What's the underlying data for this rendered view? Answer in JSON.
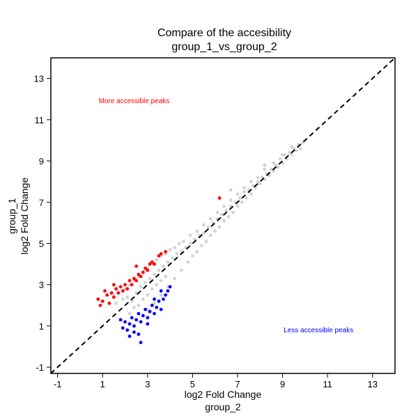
{
  "chart_data": {
    "type": "scatter",
    "title": "Compare of the accesibility",
    "subtitle": "group_1_vs_group_2",
    "xlabel": "log2 Fold Change",
    "xlabel_group": "group_2",
    "ylabel": "log2 Fold Change",
    "ylabel_group": "group_1",
    "xlim": [
      -1.3,
      14
    ],
    "ylim": [
      -1.3,
      14
    ],
    "xticks": [
      "-1",
      "1",
      "3",
      "5",
      "7",
      "9",
      "11",
      "13"
    ],
    "yticks": [
      "-1",
      "1",
      "3",
      "5",
      "7",
      "9",
      "11",
      "13"
    ],
    "grid": false,
    "reference_line": {
      "style": "dashed",
      "color": "#000000",
      "slope": 1,
      "intercept": 0
    },
    "annotations": [
      {
        "text": "More accessible peaks",
        "color": "#ff0000",
        "x": 2.4,
        "y": 11.8
      },
      {
        "text": "Less accessible peaks",
        "color": "#0000ff",
        "x": 10.6,
        "y": 0.7
      }
    ],
    "series": [
      {
        "color": "#d3d3d3",
        "points": [
          [
            1.6,
            2.1
          ],
          [
            1.9,
            2.3
          ],
          [
            2.1,
            2.4
          ],
          [
            2.3,
            2.2
          ],
          [
            2.5,
            2.6
          ],
          [
            2.7,
            2.9
          ],
          [
            2.9,
            3.1
          ],
          [
            3.1,
            3.3
          ],
          [
            3.3,
            3.5
          ],
          [
            3.5,
            3.7
          ],
          [
            3.7,
            3.9
          ],
          [
            3.9,
            4.1
          ],
          [
            4.1,
            4.3
          ],
          [
            4.3,
            4.5
          ],
          [
            4.5,
            4.6
          ],
          [
            4.7,
            4.8
          ],
          [
            4.9,
            5.0
          ],
          [
            5.1,
            5.2
          ],
          [
            5.3,
            5.4
          ],
          [
            5.5,
            5.5
          ],
          [
            5.7,
            5.8
          ],
          [
            5.9,
            6.0
          ],
          [
            6.1,
            6.2
          ],
          [
            6.3,
            6.4
          ],
          [
            6.5,
            6.6
          ],
          [
            6.7,
            6.8
          ],
          [
            6.9,
            7.0
          ],
          [
            7.1,
            7.2
          ],
          [
            7.3,
            7.5
          ],
          [
            7.5,
            7.6
          ],
          [
            7.7,
            7.8
          ],
          [
            7.9,
            8.0
          ],
          [
            8.1,
            8.2
          ],
          [
            8.3,
            8.4
          ],
          [
            8.5,
            8.6
          ],
          [
            8.7,
            8.8
          ],
          [
            8.9,
            9.1
          ],
          [
            9.1,
            9.3
          ],
          [
            9.3,
            9.4
          ],
          [
            9.5,
            9.6
          ],
          [
            9.7,
            9.8
          ],
          [
            9.9,
            9.9
          ],
          [
            2.2,
            1.6
          ],
          [
            2.4,
            1.9
          ],
          [
            2.6,
            2.0
          ],
          [
            2.8,
            2.3
          ],
          [
            3.0,
            2.5
          ],
          [
            3.2,
            2.8
          ],
          [
            3.4,
            3.0
          ],
          [
            3.6,
            3.2
          ],
          [
            3.8,
            3.4
          ],
          [
            2.0,
            2.8
          ],
          [
            2.2,
            3.0
          ],
          [
            2.4,
            3.2
          ],
          [
            2.6,
            3.4
          ],
          [
            2.8,
            3.6
          ],
          [
            3.0,
            3.8
          ],
          [
            3.2,
            4.0
          ],
          [
            3.4,
            4.2
          ],
          [
            3.6,
            4.4
          ],
          [
            3.8,
            4.5
          ],
          [
            4.0,
            4.7
          ],
          [
            4.2,
            4.8
          ],
          [
            4.4,
            5.0
          ],
          [
            4.6,
            5.1
          ],
          [
            2.5,
            1.3
          ],
          [
            2.8,
            1.5
          ],
          [
            3.0,
            1.8
          ],
          [
            3.3,
            2.1
          ],
          [
            3.6,
            2.5
          ],
          [
            3.9,
            2.9
          ],
          [
            4.2,
            3.3
          ],
          [
            4.5,
            3.7
          ],
          [
            4.8,
            4.1
          ],
          [
            5.0,
            4.4
          ],
          [
            5.2,
            4.6
          ],
          [
            5.4,
            4.9
          ],
          [
            5.6,
            5.1
          ],
          [
            5.8,
            5.4
          ],
          [
            6.0,
            5.6
          ],
          [
            6.2,
            5.8
          ],
          [
            6.4,
            6.1
          ],
          [
            6.6,
            6.3
          ],
          [
            6.8,
            6.5
          ],
          [
            7.0,
            6.8
          ],
          [
            7.2,
            7.0
          ],
          [
            7.4,
            7.2
          ],
          [
            7.6,
            7.4
          ],
          [
            7.8,
            7.7
          ],
          [
            8.0,
            7.9
          ],
          [
            8.2,
            8.1
          ],
          [
            8.4,
            8.3
          ],
          [
            8.6,
            8.5
          ],
          [
            8.8,
            8.7
          ],
          [
            9.0,
            8.9
          ],
          [
            9.2,
            9.1
          ],
          [
            9.4,
            9.3
          ],
          [
            9.6,
            9.5
          ],
          [
            9.8,
            9.6
          ],
          [
            4.9,
            5.4
          ],
          [
            5.2,
            5.6
          ],
          [
            5.5,
            5.9
          ],
          [
            5.8,
            6.2
          ],
          [
            6.1,
            6.5
          ],
          [
            6.4,
            6.8
          ],
          [
            6.7,
            7.1
          ],
          [
            7.0,
            7.4
          ],
          [
            7.3,
            7.7
          ],
          [
            7.6,
            8.0
          ],
          [
            7.9,
            8.2
          ],
          [
            8.2,
            8.6
          ],
          [
            8.6,
            8.9
          ],
          [
            9.0,
            9.3
          ],
          [
            9.4,
            9.7
          ],
          [
            8.2,
            8.8
          ],
          [
            6.7,
            7.6
          ]
        ]
      },
      {
        "color": "#ff0000",
        "points": [
          [
            0.8,
            2.3
          ],
          [
            1.0,
            2.2
          ],
          [
            1.2,
            2.5
          ],
          [
            1.4,
            2.6
          ],
          [
            1.5,
            2.4
          ],
          [
            1.6,
            2.8
          ],
          [
            1.7,
            2.6
          ],
          [
            1.8,
            2.9
          ],
          [
            1.9,
            2.7
          ],
          [
            2.0,
            3.0
          ],
          [
            2.1,
            2.8
          ],
          [
            2.2,
            3.2
          ],
          [
            2.3,
            3.0
          ],
          [
            2.4,
            3.3
          ],
          [
            2.5,
            3.2
          ],
          [
            2.6,
            3.5
          ],
          [
            2.7,
            3.4
          ],
          [
            2.8,
            3.6
          ],
          [
            2.9,
            3.8
          ],
          [
            3.0,
            3.7
          ],
          [
            3.1,
            4.0
          ],
          [
            3.2,
            4.1
          ],
          [
            3.3,
            4.0
          ],
          [
            3.5,
            4.4
          ],
          [
            3.6,
            4.5
          ],
          [
            3.8,
            4.6
          ],
          [
            1.3,
            2.1
          ],
          [
            1.1,
            2.7
          ],
          [
            0.9,
            2.0
          ],
          [
            1.5,
            3.0
          ],
          [
            2.5,
            3.9
          ],
          [
            6.2,
            7.2
          ]
        ]
      },
      {
        "color": "#0000ff",
        "points": [
          [
            1.9,
            0.9
          ],
          [
            2.0,
            1.2
          ],
          [
            2.1,
            0.8
          ],
          [
            2.2,
            1.1
          ],
          [
            2.3,
            1.4
          ],
          [
            2.4,
            1.0
          ],
          [
            2.5,
            1.3
          ],
          [
            2.6,
            1.6
          ],
          [
            2.7,
            1.2
          ],
          [
            2.8,
            1.5
          ],
          [
            2.9,
            1.8
          ],
          [
            3.0,
            1.4
          ],
          [
            3.1,
            1.7
          ],
          [
            3.2,
            2.0
          ],
          [
            3.3,
            1.6
          ],
          [
            3.4,
            1.9
          ],
          [
            3.5,
            2.2
          ],
          [
            3.6,
            1.8
          ],
          [
            3.7,
            2.3
          ],
          [
            3.8,
            2.5
          ],
          [
            3.9,
            2.7
          ],
          [
            4.0,
            2.9
          ],
          [
            3.3,
            2.3
          ],
          [
            3.6,
            2.7
          ],
          [
            2.4,
            0.7
          ],
          [
            2.6,
            0.6
          ],
          [
            2.7,
            0.2
          ],
          [
            2.2,
            0.5
          ],
          [
            1.8,
            1.3
          ],
          [
            3.0,
            1.1
          ]
        ]
      }
    ]
  }
}
